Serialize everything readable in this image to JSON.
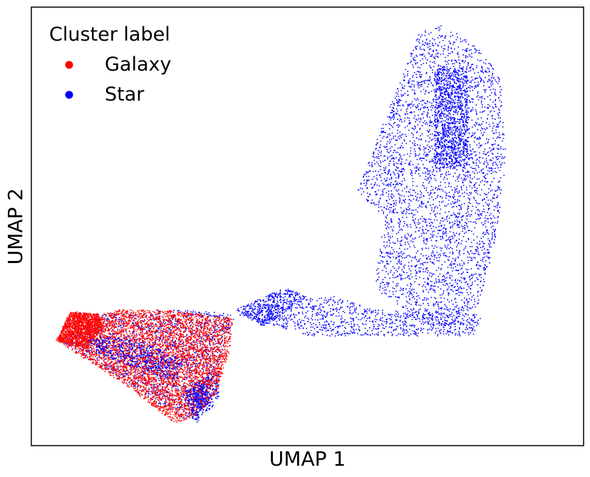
{
  "chart_data": {
    "type": "scatter",
    "xlabel": "UMAP 1",
    "ylabel": "UMAP 2",
    "xlim": [
      0,
      100
    ],
    "ylim": [
      0,
      100
    ],
    "grid": false,
    "show_ticks": false,
    "legend": {
      "title": "Cluster label",
      "position": "top-left",
      "entries": [
        {
          "name": "Galaxy",
          "color": "#ff0000"
        },
        {
          "name": "Star",
          "color": "#0000ff"
        }
      ]
    },
    "series": [
      {
        "name": "Star",
        "color": "#0000ff",
        "regions": [
          {
            "shape": "polygon",
            "n": 3600,
            "vertices": [
              [
                59,
                58
              ],
              [
                70,
                94
              ],
              [
                74,
                96
              ],
              [
                80,
                92
              ],
              [
                85,
                84
              ],
              [
                86,
                65
              ],
              [
                84,
                46
              ],
              [
                80,
                28
              ],
              [
                72,
                27
              ],
              [
                62,
                36
              ],
              [
                64,
                52
              ]
            ]
          },
          {
            "shape": "polygon",
            "n": 1000,
            "vertices": [
              [
                73,
                86
              ],
              [
                79,
                86
              ],
              [
                79,
                63
              ],
              [
                73,
                63
              ]
            ]
          },
          {
            "shape": "polygon",
            "n": 900,
            "vertices": [
              [
                37,
                30
              ],
              [
                50,
                25
              ],
              [
                80,
                25
              ],
              [
                82,
                30
              ],
              [
                62,
                31
              ],
              [
                55,
                34
              ],
              [
                45,
                33
              ]
            ]
          },
          {
            "shape": "polygon",
            "n": 450,
            "vertices": [
              [
                37,
                31
              ],
              [
                46,
                36
              ],
              [
                50,
                34
              ],
              [
                42,
                27
              ]
            ]
          },
          {
            "shape": "polygon",
            "n": 1600,
            "vertices": [
              [
                5,
                24
              ],
              [
                12,
                30
              ],
              [
                27,
                31
              ],
              [
                37,
                30
              ],
              [
                30,
                5
              ],
              [
                26,
                7
              ],
              [
                18,
                14
              ]
            ]
          },
          {
            "shape": "polygon",
            "n": 300,
            "vertices": [
              [
                29,
                6
              ],
              [
                34,
                11
              ],
              [
                34,
                17
              ],
              [
                29,
                14
              ]
            ]
          }
        ]
      },
      {
        "name": "Galaxy",
        "color": "#ff0000",
        "regions": [
          {
            "shape": "polygon",
            "n": 5200,
            "vertices": [
              [
                4.5,
                24
              ],
              [
                8,
                30.5
              ],
              [
                13,
                30
              ],
              [
                16,
                31
              ],
              [
                24,
                31
              ],
              [
                36.5,
                29
              ],
              [
                36,
                22
              ],
              [
                33.5,
                12
              ],
              [
                30,
                7
              ],
              [
                26,
                5
              ],
              [
                18,
                13
              ]
            ]
          },
          {
            "shape": "polygon",
            "n": 1300,
            "vertices": [
              [
                4.5,
                24
              ],
              [
                7,
                30.5
              ],
              [
                12,
                30
              ],
              [
                13,
                27
              ],
              [
                10,
                22
              ]
            ]
          }
        ]
      },
      {
        "name": "Star",
        "color": "#0000ff",
        "regions": [
          {
            "shape": "polygon",
            "n": 500,
            "vertices": [
              [
                10,
                24
              ],
              [
                14,
                25
              ],
              [
                22,
                23
              ],
              [
                28,
                19
              ],
              [
                26,
                15
              ],
              [
                18,
                18
              ],
              [
                12,
                21
              ]
            ]
          },
          {
            "shape": "polygon",
            "n": 220,
            "vertices": [
              [
                27,
                12
              ],
              [
                31,
                14
              ],
              [
                33,
                9
              ],
              [
                30,
                6
              ]
            ]
          }
        ]
      }
    ]
  }
}
